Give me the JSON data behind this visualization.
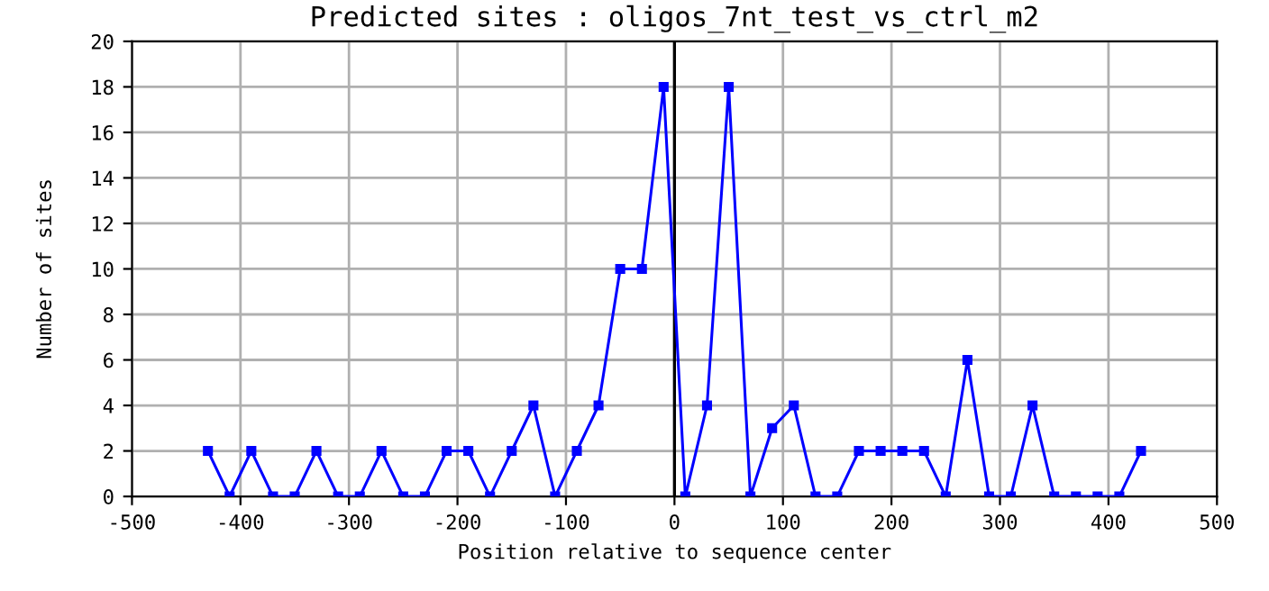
{
  "chart_data": {
    "type": "line",
    "title": "Predicted sites : oligos_7nt_test_vs_ctrl_m2",
    "xlabel": "Position relative to sequence center",
    "ylabel": "Number of sites",
    "x": [
      -430,
      -410,
      -390,
      -370,
      -350,
      -330,
      -310,
      -290,
      -270,
      -250,
      -230,
      -210,
      -190,
      -170,
      -150,
      -130,
      -110,
      -90,
      -70,
      -50,
      -30,
      -10,
      10,
      30,
      50,
      70,
      90,
      110,
      130,
      150,
      170,
      190,
      210,
      230,
      250,
      270,
      290,
      310,
      330,
      350,
      370,
      390,
      410,
      430
    ],
    "series": [
      {
        "color": "#0000ff",
        "values": [
          2,
          0,
          2,
          0,
          0,
          2,
          0,
          0,
          2,
          0,
          0,
          2,
          2,
          0,
          2,
          4,
          0,
          2,
          4,
          10,
          10,
          18,
          0,
          4,
          18,
          0,
          3,
          4,
          0,
          0,
          2,
          2,
          2,
          2,
          0,
          6,
          0,
          0,
          4,
          0,
          0,
          0,
          0,
          2
        ]
      }
    ],
    "xlim": [
      -500,
      500
    ],
    "ylim": [
      0,
      20
    ],
    "xticks": [
      -500,
      -400,
      -300,
      -200,
      -100,
      0,
      100,
      200,
      300,
      400,
      500
    ],
    "yticks": [
      0,
      2,
      4,
      6,
      8,
      10,
      12,
      14,
      16,
      18,
      20
    ],
    "ref_lines": [
      {
        "axis": "x",
        "value": 0,
        "color": "#000000"
      }
    ],
    "grid": true,
    "marker": "square",
    "line_style": "solid"
  }
}
